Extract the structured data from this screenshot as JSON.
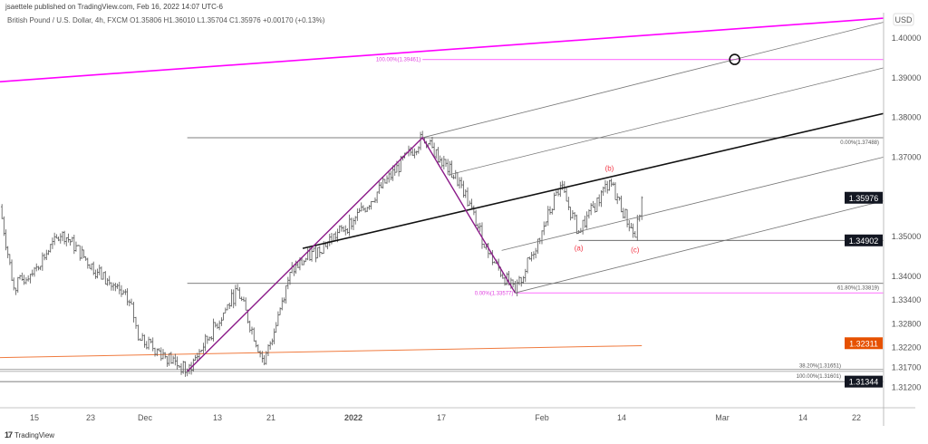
{
  "header": {
    "published": "jsaettele published on TradingView.com, Feb 16, 2022 14:07 UTC-6",
    "legend": "British Pound / U.S. Dollar, 4h, FXCM  O1.35806  H1.36010  L1.35704  C1.35976  +0.00170 (+0.13%)"
  },
  "footer": {
    "logo_text": "TradingView",
    "logo_icon": "tradingview-logo-icon"
  },
  "chart_data": {
    "type": "ohlc",
    "symbol": "GBPUSD",
    "interval": "4h",
    "currency": "USD",
    "colors": {
      "bars": "#555555",
      "trendline": "#ff00ff",
      "fib_pink": "#ff80ff",
      "purple": "#8b1a89",
      "ma": "#f07b3f",
      "badge_dark": "#131722",
      "badge_orange": "#e65100",
      "wave": "#f23645"
    },
    "x_ticks": [
      {
        "label": "15",
        "date": "2021-11-15"
      },
      {
        "label": "23",
        "date": "2021-11-23"
      },
      {
        "label": "Dec",
        "date": "2021-12-01"
      },
      {
        "label": "13",
        "date": "2021-12-13"
      },
      {
        "label": "21",
        "date": "2021-12-21"
      },
      {
        "label": "2022",
        "date": "2022-01-03",
        "bold": true
      },
      {
        "label": "17",
        "date": "2022-01-17"
      },
      {
        "label": "Feb",
        "date": "2022-02-01"
      },
      {
        "label": "14",
        "date": "2022-02-14"
      },
      {
        "label": "Mar",
        "date": "2022-03-01"
      },
      {
        "label": "14",
        "date": "2022-03-14"
      },
      {
        "label": "22",
        "date": "2022-03-22"
      }
    ],
    "x_range": [
      "2021-11-10",
      "2022-03-26"
    ],
    "y_ticks": [
      "1.40000",
      "1.39000",
      "1.38000",
      "1.37000",
      "1.35000",
      "1.34000",
      "1.33400",
      "1.32800",
      "1.32200",
      "1.31700",
      "1.31200"
    ],
    "y_range": [
      1.3078,
      1.4095
    ],
    "price_path": [
      [
        "2021-11-10",
        1.3575
      ],
      [
        "2021-11-12",
        1.337
      ],
      [
        "2021-11-15",
        1.342
      ],
      [
        "2021-11-19",
        1.351
      ],
      [
        "2021-11-24",
        1.341
      ],
      [
        "2021-11-29",
        1.333
      ],
      [
        "2021-11-30",
        1.324
      ],
      [
        "2021-12-03",
        1.3215
      ],
      [
        "2021-12-08",
        1.316
      ],
      [
        "2021-12-16",
        1.3365
      ],
      [
        "2021-12-20",
        1.318
      ],
      [
        "2021-12-24",
        1.341
      ],
      [
        "2022-01-03",
        1.354
      ],
      [
        "2022-01-14",
        1.3749
      ],
      [
        "2022-01-20",
        1.363
      ],
      [
        "2022-01-24",
        1.3457
      ],
      [
        "2022-01-28",
        1.3358
      ],
      [
        "2022-02-01",
        1.3514
      ],
      [
        "2022-02-04",
        1.3628
      ],
      [
        "2022-02-07",
        1.351
      ],
      [
        "2022-02-12",
        1.364
      ],
      [
        "2022-02-16",
        1.3498
      ],
      [
        "2022-02-17",
        1.3598
      ]
    ],
    "drawings": {
      "trendline": {
        "from": [
          "2021-11-10",
          1.389
        ],
        "to": [
          "2022-03-26",
          1.405
        ]
      },
      "moving_average": {
        "from": [
          "2021-11-10",
          1.3195
        ],
        "to": [
          "2022-02-17",
          1.3225
        ]
      },
      "purple_swing": [
        [
          "2021-12-08",
          1.316
        ],
        [
          "2022-01-14",
          1.3749
        ],
        [
          "2022-01-28",
          1.3358
        ]
      ],
      "pitchfork_median": {
        "from": [
          "2021-12-26",
          1.347
        ],
        "to": [
          "2022-03-26",
          1.381
        ]
      },
      "channel_lines": [
        {
          "from": [
            "2022-01-14",
            1.3749
          ],
          "to": [
            "2022-03-26",
            1.404
          ]
        },
        {
          "from": [
            "2022-01-18",
            1.3655
          ],
          "to": [
            "2022-03-26",
            1.3925
          ]
        },
        {
          "from": [
            "2022-01-26",
            1.3465
          ],
          "to": [
            "2022-03-26",
            1.37
          ]
        },
        {
          "from": [
            "2022-01-28",
            1.3358
          ],
          "to": [
            "2022-03-26",
            1.359
          ]
        }
      ],
      "horizontal_levels": [
        {
          "price": 1.39461,
          "from": "2022-01-14",
          "label": "100.00%(1.39461)",
          "color": "#ff80ff",
          "label_side": "left"
        },
        {
          "price": 1.37488,
          "from": "2021-12-08",
          "label": "0.00%(1.37488)",
          "color": "#555555",
          "label_side": "right"
        },
        {
          "price": 1.33819,
          "from": "2021-12-08",
          "label": "61.80%(1.33819)",
          "color": "#555555",
          "label_side": "right"
        },
        {
          "price": 1.33577,
          "from": "2022-01-28",
          "label": "0.00%(1.33577)",
          "color": "#ff80ff",
          "label_side": "left"
        },
        {
          "price": 1.34902,
          "from": "2022-02-07",
          "label": "",
          "color": "#555555"
        },
        {
          "price": 1.31651,
          "from": "2021-11-10",
          "label": "38.20%(1.31651)",
          "color": "#999999",
          "label_side": "right"
        },
        {
          "price": 1.31601,
          "from": "2021-11-10",
          "label": "100.00%(1.31601)",
          "color": "#999999",
          "label_side": "right"
        },
        {
          "price": 1.31344,
          "from": "2021-11-10",
          "label": "",
          "color": "#555555"
        }
      ],
      "target_circle": [
        "2022-03-03",
        1.39461
      ],
      "waves": [
        {
          "label": "(a)",
          "date": "2022-02-07",
          "price": 1.3465
        },
        {
          "label": "(b)",
          "date": "2022-02-12",
          "price": 1.3665
        },
        {
          "label": "(c)",
          "date": "2022-02-16",
          "price": 1.346
        }
      ]
    },
    "price_badges": [
      {
        "value": "1.35976",
        "color": "#131722"
      },
      {
        "value": "1.34902",
        "color": "#131722"
      },
      {
        "value": "1.32311",
        "color": "#e65100"
      },
      {
        "value": "1.31344",
        "color": "#131722"
      }
    ]
  }
}
